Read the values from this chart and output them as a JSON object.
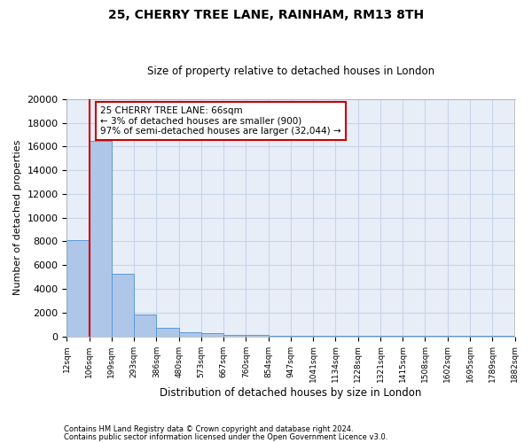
{
  "title1": "25, CHERRY TREE LANE, RAINHAM, RM13 8TH",
  "title2": "Size of property relative to detached houses in London",
  "xlabel": "Distribution of detached houses by size in London",
  "ylabel": "Number of detached properties",
  "footnote1": "Contains HM Land Registry data © Crown copyright and database right 2024.",
  "footnote2": "Contains public sector information licensed under the Open Government Licence v3.0.",
  "bin_labels": [
    "12sqm",
    "106sqm",
    "199sqm",
    "293sqm",
    "386sqm",
    "480sqm",
    "573sqm",
    "667sqm",
    "760sqm",
    "854sqm",
    "947sqm",
    "1041sqm",
    "1134sqm",
    "1228sqm",
    "1321sqm",
    "1415sqm",
    "1508sqm",
    "1602sqm",
    "1695sqm",
    "1789sqm",
    "1882sqm"
  ],
  "bar_values": [
    8100,
    16500,
    5300,
    1800,
    700,
    380,
    250,
    150,
    100,
    80,
    70,
    60,
    55,
    50,
    45,
    40,
    35,
    30,
    25,
    20
  ],
  "bar_color": "#aec6e8",
  "bar_edge_color": "#5b9bd5",
  "vline_x": 1.0,
  "annotation_text": "25 CHERRY TREE LANE: 66sqm\n← 3% of detached houses are smaller (900)\n97% of semi-detached houses are larger (32,044) →",
  "annotation_box_color": "#ffffff",
  "annotation_box_edge": "#cc0000",
  "vline_color": "#cc0000",
  "ylim": [
    0,
    20000
  ],
  "yticks": [
    0,
    2000,
    4000,
    6000,
    8000,
    10000,
    12000,
    14000,
    16000,
    18000,
    20000
  ],
  "grid_color": "#c8d4e8",
  "background_color": "#e8eef8"
}
